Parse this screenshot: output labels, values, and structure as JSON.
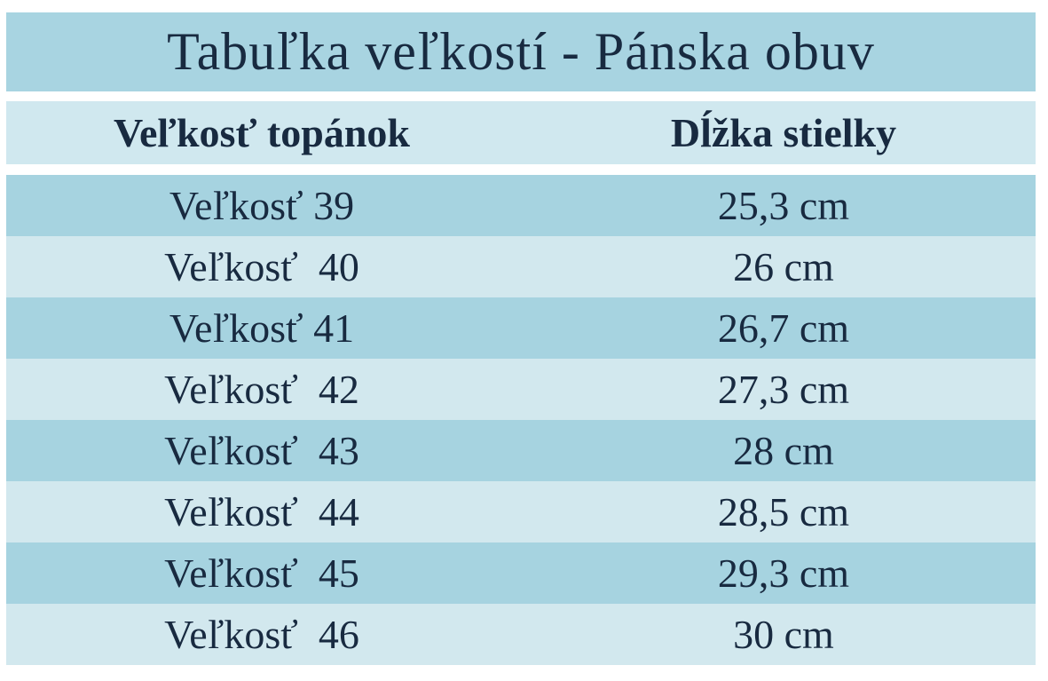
{
  "table": {
    "title": "Tabuľka veľkostí - Pánska obuv",
    "header": [
      "Veľkosť topánok",
      "Dĺžka stielky"
    ],
    "rows": [
      [
        "Veľkosť 39",
        "25,3 cm"
      ],
      [
        "Veľkosť  40",
        "26 cm"
      ],
      [
        "Veľkosť 41",
        "26,7 cm"
      ],
      [
        "Veľkosť  42",
        "27,3 cm"
      ],
      [
        "Veľkosť  43",
        "28 cm"
      ],
      [
        "Veľkosť  44",
        "28,5 cm"
      ],
      [
        "Veľkosť  45",
        "29,3 cm"
      ],
      [
        "Veľkosť  46",
        "30 cm"
      ]
    ]
  }
}
